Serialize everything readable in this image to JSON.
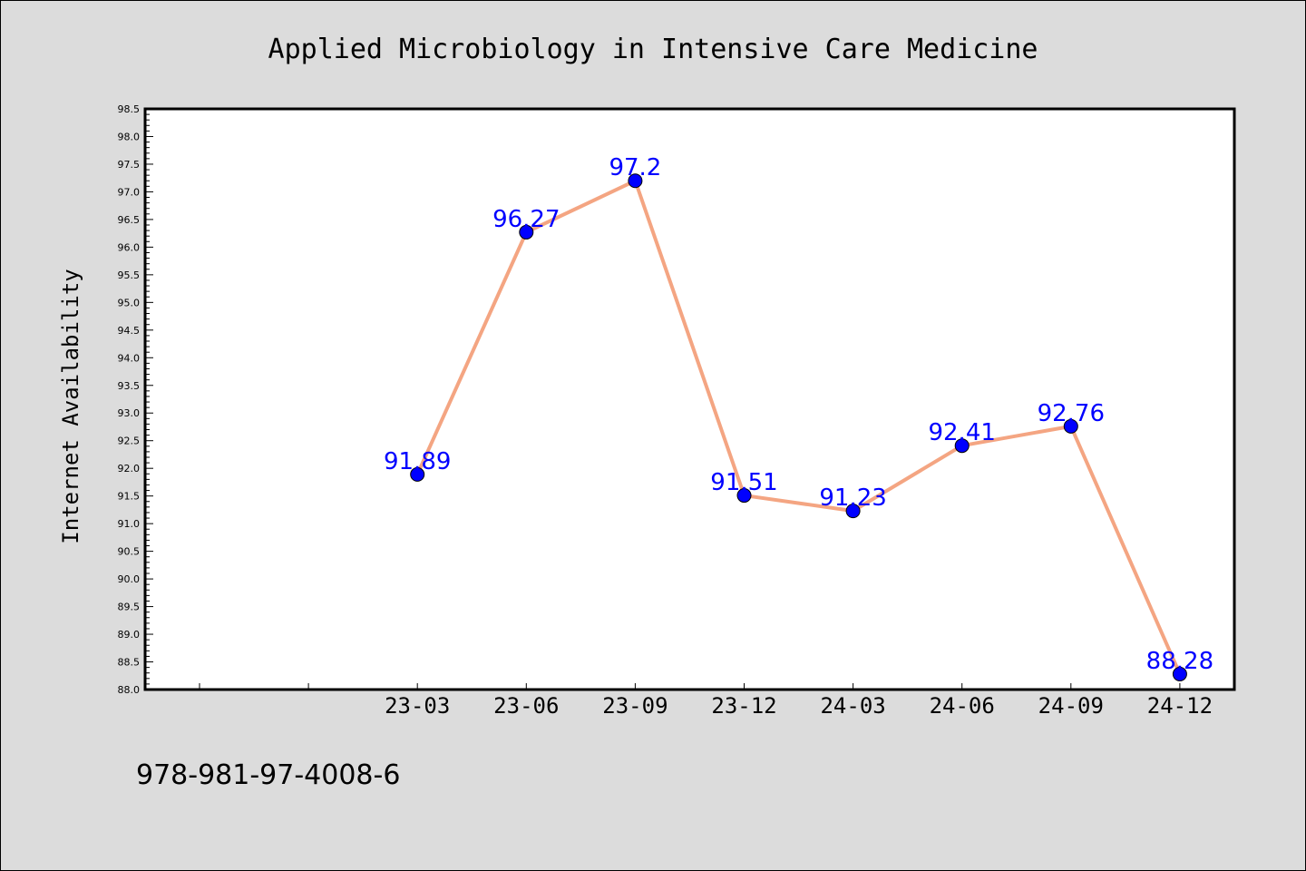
{
  "chart_data": {
    "type": "line",
    "title": "Applied Microbiology in Intensive Care Medicine",
    "xlabel": "",
    "ylabel": "Internet Availability",
    "categories": [
      "23-03",
      "23-06",
      "23-09",
      "23-12",
      "24-03",
      "24-06",
      "24-09",
      "24-12"
    ],
    "series": [
      {
        "values": [
          91.89,
          96.27,
          97.2,
          91.51,
          91.23,
          92.41,
          92.76,
          88.28
        ],
        "data_labels": [
          "91.89",
          "96.27",
          "97.2",
          "91.51",
          "91.23",
          "92.41",
          "92.76",
          "88.28"
        ]
      }
    ],
    "ylim": [
      88.0,
      98.5
    ],
    "ytick_step": 0.5,
    "ytick_labels": [
      "88.0",
      "88.5",
      "89.0",
      "89.5",
      "90.0",
      "90.5",
      "91.0",
      "91.5",
      "92.0",
      "92.5",
      "93.0",
      "93.5",
      "94.0",
      "94.5",
      "95.0",
      "95.5",
      "96.0",
      "96.5",
      "97.0",
      "97.5",
      "98.0",
      "98.5"
    ],
    "grid": false,
    "line_color": "#f4a582",
    "marker_color": "#0000ff",
    "label_color": "#0000ff"
  },
  "footer": {
    "isbn": "978-981-97-4008-6"
  }
}
